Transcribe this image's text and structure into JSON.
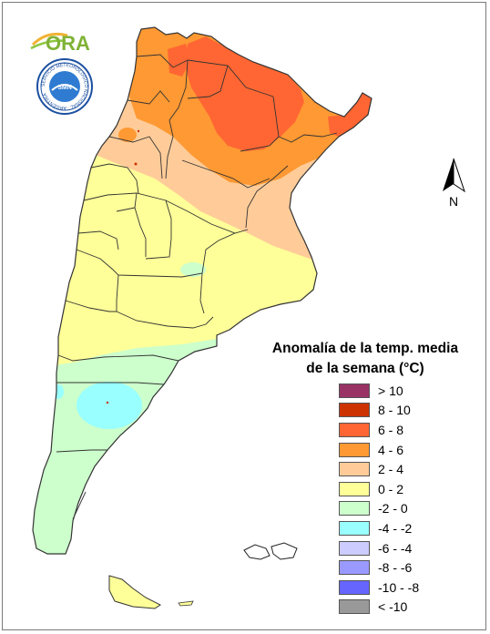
{
  "logos": {
    "ora": "ORA",
    "smn_ring_text": "SERVICIO METEOROLÓGICO NACIONAL · ARGENTINA",
    "smn_center": "SMN"
  },
  "north_arrow": {
    "label": "N"
  },
  "legend": {
    "title_line1": "Anomalía de la temp. media",
    "title_line2": "de la semana (°C)",
    "items": [
      {
        "label": "> 10",
        "color": "#993366"
      },
      {
        "label": "8 - 10",
        "color": "#cc3300"
      },
      {
        "label": "6 - 8",
        "color": "#ff6633"
      },
      {
        "label": "4 - 6",
        "color": "#ff9933"
      },
      {
        "label": "2 - 4",
        "color": "#ffcc99"
      },
      {
        "label": "0 - 2",
        "color": "#ffff99"
      },
      {
        "label": "-2 - 0",
        "color": "#ccffcc"
      },
      {
        "label": "-4 - -2",
        "color": "#99ffff"
      },
      {
        "label": "-6 - -4",
        "color": "#ccccff"
      },
      {
        "label": "-8 - -6",
        "color": "#9999ff"
      },
      {
        "label": "-10 - -8",
        "color": "#6666ff"
      },
      {
        "label": "< -10",
        "color": "#999999"
      }
    ]
  },
  "map_colors": {
    "c_6_8": "#ff6633",
    "c_4_6": "#ff9933",
    "c_2_4": "#ffcc99",
    "c_0_2": "#ffff99",
    "c_m2_0": "#ccffcc",
    "c_m4_m2": "#99ffff",
    "border": "#333333"
  }
}
